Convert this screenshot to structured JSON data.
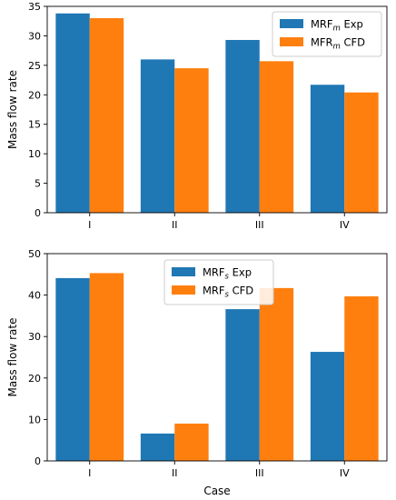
{
  "chart_data": [
    {
      "type": "bar",
      "categories": [
        "I",
        "II",
        "III",
        "IV"
      ],
      "series": [
        {
          "name": "MRF",
          "sub": "m",
          "suffix": " Exp",
          "color": "#1f77b4",
          "values": [
            33.8,
            26.0,
            29.3,
            21.7
          ]
        },
        {
          "name": "MFR",
          "sub": "m",
          "suffix": " CFD",
          "color": "#ff7f0e",
          "values": [
            33.0,
            24.5,
            25.7,
            20.4
          ]
        }
      ],
      "xlabel": "",
      "ylabel": "Mass flow rate",
      "ylim": [
        0,
        35
      ],
      "yticks": [
        0,
        5,
        10,
        15,
        20,
        25,
        30,
        35
      ],
      "legend": "top-right",
      "grid": false
    },
    {
      "type": "bar",
      "categories": [
        "I",
        "II",
        "III",
        "IV"
      ],
      "series": [
        {
          "name": "MRF",
          "sub": "s",
          "suffix": " Exp",
          "color": "#1f77b4",
          "values": [
            44.1,
            6.6,
            36.6,
            26.3
          ]
        },
        {
          "name": "MRF",
          "sub": "s",
          "suffix": " CFD",
          "color": "#ff7f0e",
          "values": [
            45.3,
            9.0,
            41.7,
            39.7
          ]
        }
      ],
      "xlabel": "Case",
      "ylabel": "Mass flow rate",
      "ylim": [
        0,
        50
      ],
      "yticks": [
        0,
        10,
        20,
        30,
        40,
        50
      ],
      "legend": "top-center",
      "grid": false
    }
  ]
}
